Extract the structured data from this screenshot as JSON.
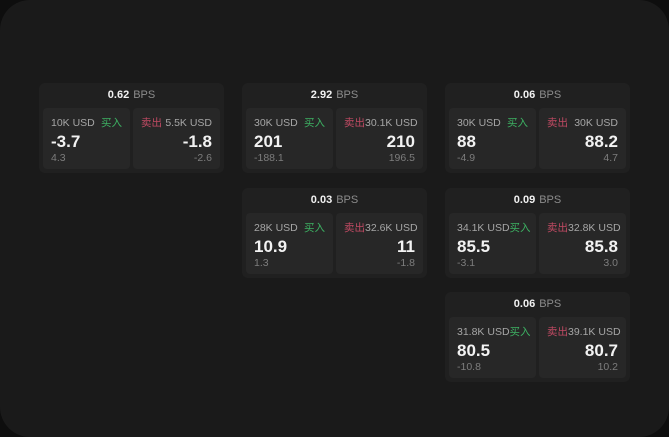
{
  "colors": {
    "outer_bg": "#0e0e0e",
    "panel_bg": "#1a1a1a",
    "card_bg": "#202020",
    "tile_bg": "#272727",
    "buy_green": "#3db263",
    "sell_red": "#c04a63",
    "text_primary": "#f2f2f2",
    "text_label": "#a6a6a6",
    "text_muted": "#7d7d7d",
    "text_unit": "#8c8c8c"
  },
  "labels": {
    "bps_suffix": "BPS",
    "buy": "买入",
    "sell": "卖出"
  },
  "cards": [
    {
      "bps": "0.62",
      "buy": {
        "size": "10K USD",
        "value": "-3.7",
        "sub": "4.3"
      },
      "sell": {
        "size": "5.5K USD",
        "value": "-1.8",
        "sub": "-2.6"
      }
    },
    {
      "bps": "2.92",
      "buy": {
        "size": "30K USD",
        "value": "201",
        "sub": "-188.1"
      },
      "sell": {
        "size": "30.1K USD",
        "value": "210",
        "sub": "196.5"
      }
    },
    {
      "bps": "0.06",
      "buy": {
        "size": "30K USD",
        "value": "88",
        "sub": "-4.9"
      },
      "sell": {
        "size": "30K USD",
        "value": "88.2",
        "sub": "4.7"
      }
    },
    {
      "bps": "0.03",
      "buy": {
        "size": "28K USD",
        "value": "10.9",
        "sub": "1.3"
      },
      "sell": {
        "size": "32.6K USD",
        "value": "11",
        "sub": "-1.8"
      }
    },
    {
      "bps": "0.09",
      "buy": {
        "size": "34.1K USD",
        "value": "85.5",
        "sub": "-3.1"
      },
      "sell": {
        "size": "32.8K USD",
        "value": "85.8",
        "sub": "3.0"
      }
    },
    {
      "bps": "0.06",
      "buy": {
        "size": "31.8K USD",
        "value": "80.5",
        "sub": "-10.8"
      },
      "sell": {
        "size": "39.1K USD",
        "value": "80.7",
        "sub": "10.2"
      }
    }
  ]
}
